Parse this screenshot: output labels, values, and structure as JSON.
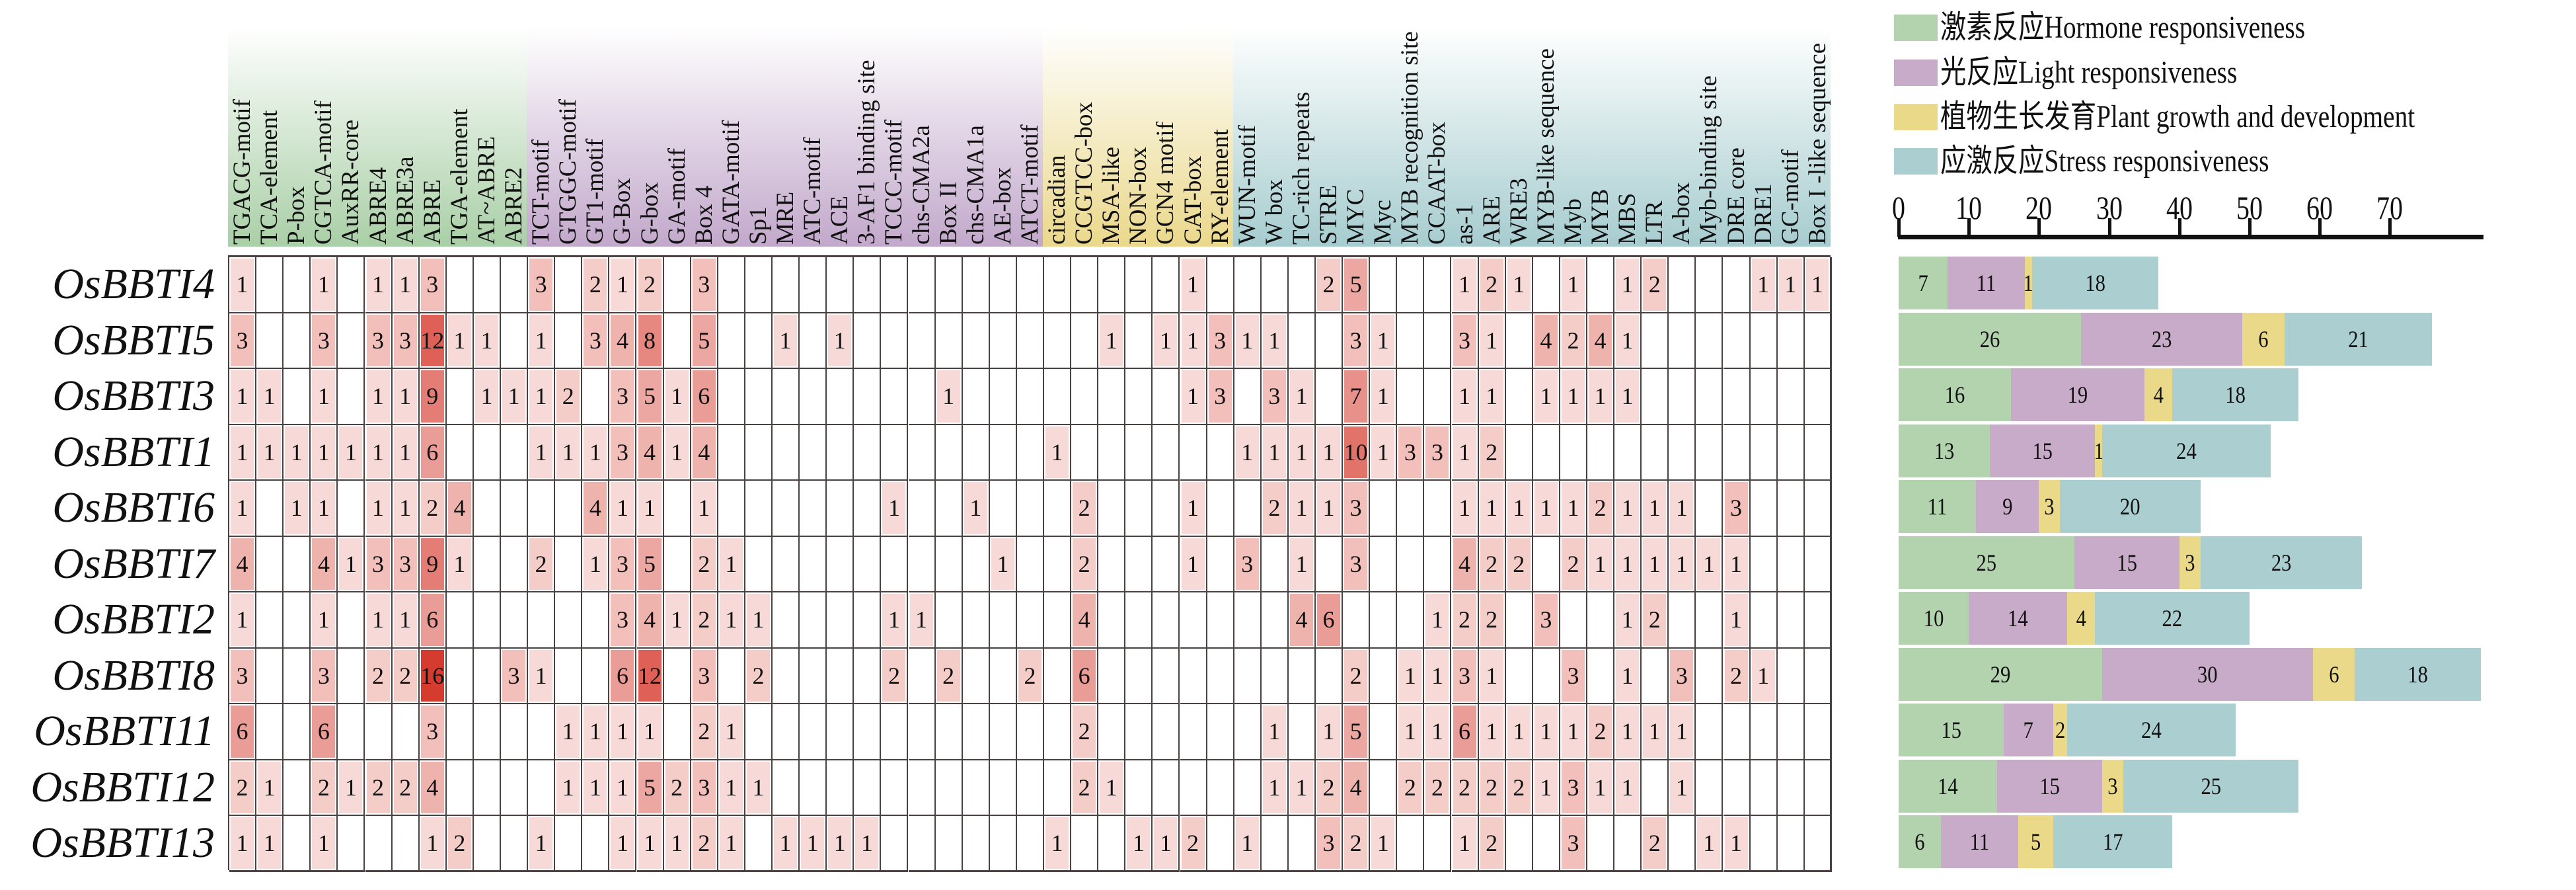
{
  "chart_data": [
    {
      "type": "heatmap",
      "title": "",
      "rows": [
        "OsBBTI4",
        "OsBBTI5",
        "OsBBTI3",
        "OsBBTI1",
        "OsBBTI6",
        "OsBBTI7",
        "OsBBTI2",
        "OsBBTI8",
        "OsBBTI11",
        "OsBBTI12",
        "OsBBTI13"
      ],
      "column_groups": [
        {
          "name": "Hormone responsiveness",
          "color": "#a9cfa6",
          "columns": [
            "TGACG-motif",
            "TCA-element",
            "P-box",
            "CGTCA-motif",
            "AuxRR-core",
            "ABRE4",
            "ABRE3a",
            "ABRE",
            "TGA-element",
            "AT~ABRE",
            "ABRE2"
          ]
        },
        {
          "name": "Light responsiveness",
          "color": "#c2a8cb",
          "columns": [
            "TCT-motif",
            "GTGGC-motif",
            "GT1-motif",
            "G-Box",
            "G-box",
            "GA-motif",
            "Box 4",
            "GATA-motif",
            "Sp1",
            "MRE",
            "ATC-motif",
            "ACE",
            "3-AF1 binding site",
            "TCCC-motif",
            "chs-CMA2a",
            "Box II",
            "chs-CMA1a",
            "AE-box",
            "ATCT-motif"
          ]
        },
        {
          "name": "Plant growth and development",
          "color": "#ead88b",
          "columns": [
            "circadian",
            "CCGTCC-box",
            "MSA-like",
            "NON-box",
            "GCN4 motif",
            "CAT-box",
            "RY-element"
          ]
        },
        {
          "name": "Stress responsiveness",
          "color": "#a6cccf",
          "columns": [
            "WUN-motif",
            "W box",
            "TC-rich repeats",
            "STRE",
            "MYC",
            "Myc",
            "MYB recognition site",
            "CCAAT-box",
            "as-1",
            "ARE",
            "WRE3",
            "MYB-like sequence",
            "Myb",
            "MYB",
            "MBS",
            "LTR",
            "A-box",
            "Myb-binding site",
            "DRE core",
            "DRE1",
            "GC-motif",
            "Box I -like sequence"
          ]
        }
      ],
      "values": [
        [
          1,
          0,
          0,
          1,
          0,
          1,
          1,
          3,
          0,
          0,
          0,
          3,
          0,
          2,
          1,
          2,
          0,
          3,
          0,
          0,
          0,
          0,
          0,
          0,
          0,
          0,
          0,
          0,
          0,
          0,
          0,
          0,
          0,
          0,
          0,
          1,
          0,
          0,
          0,
          0,
          2,
          5,
          0,
          0,
          0,
          1,
          2,
          1,
          0,
          1,
          0,
          1,
          2,
          0,
          0,
          0,
          1,
          1,
          1
        ],
        [
          3,
          0,
          0,
          3,
          0,
          3,
          3,
          12,
          1,
          1,
          0,
          1,
          0,
          3,
          4,
          8,
          0,
          5,
          0,
          0,
          1,
          0,
          1,
          0,
          0,
          0,
          0,
          0,
          0,
          0,
          0,
          0,
          1,
          0,
          1,
          1,
          3,
          1,
          1,
          0,
          0,
          3,
          1,
          0,
          0,
          3,
          1,
          0,
          4,
          2,
          4,
          1,
          0,
          0,
          0,
          0,
          0,
          0,
          0
        ],
        [
          1,
          1,
          0,
          1,
          0,
          1,
          1,
          9,
          0,
          1,
          1,
          1,
          2,
          0,
          3,
          5,
          1,
          6,
          0,
          0,
          0,
          0,
          0,
          0,
          0,
          0,
          1,
          0,
          0,
          0,
          0,
          0,
          0,
          0,
          0,
          1,
          3,
          0,
          3,
          1,
          0,
          7,
          1,
          0,
          0,
          1,
          1,
          0,
          1,
          1,
          1,
          1,
          0,
          0,
          0,
          0,
          0,
          0,
          0
        ],
        [
          1,
          1,
          1,
          1,
          1,
          1,
          1,
          6,
          0,
          0,
          0,
          1,
          1,
          1,
          3,
          4,
          1,
          4,
          0,
          0,
          0,
          0,
          0,
          0,
          0,
          0,
          0,
          0,
          0,
          0,
          1,
          0,
          0,
          0,
          0,
          0,
          0,
          1,
          1,
          1,
          1,
          10,
          1,
          3,
          3,
          1,
          2,
          0,
          0,
          0,
          0,
          0,
          0,
          0,
          0,
          0,
          0,
          0,
          0
        ],
        [
          1,
          0,
          1,
          1,
          0,
          1,
          1,
          2,
          4,
          0,
          0,
          0,
          0,
          4,
          1,
          1,
          0,
          1,
          0,
          0,
          0,
          0,
          0,
          0,
          1,
          0,
          0,
          1,
          0,
          0,
          0,
          2,
          0,
          0,
          0,
          1,
          0,
          0,
          2,
          1,
          1,
          3,
          0,
          0,
          0,
          1,
          1,
          1,
          1,
          1,
          2,
          1,
          1,
          1,
          0,
          3,
          0,
          0,
          0
        ],
        [
          4,
          0,
          0,
          4,
          1,
          3,
          3,
          9,
          1,
          0,
          0,
          2,
          0,
          1,
          3,
          5,
          0,
          2,
          1,
          0,
          0,
          0,
          0,
          0,
          0,
          0,
          0,
          0,
          1,
          0,
          0,
          2,
          0,
          0,
          0,
          1,
          0,
          3,
          0,
          1,
          0,
          3,
          0,
          0,
          0,
          4,
          2,
          2,
          0,
          2,
          1,
          1,
          1,
          1,
          1,
          1,
          0,
          0,
          0
        ],
        [
          1,
          0,
          0,
          1,
          0,
          1,
          1,
          6,
          0,
          0,
          0,
          0,
          0,
          0,
          3,
          4,
          1,
          2,
          1,
          1,
          0,
          0,
          0,
          0,
          1,
          1,
          0,
          0,
          0,
          0,
          0,
          4,
          0,
          0,
          0,
          0,
          0,
          0,
          0,
          4,
          6,
          0,
          0,
          0,
          1,
          2,
          2,
          0,
          3,
          0,
          0,
          1,
          2,
          0,
          0,
          1,
          0,
          0,
          0
        ],
        [
          3,
          0,
          0,
          3,
          0,
          2,
          2,
          16,
          0,
          0,
          3,
          1,
          0,
          0,
          6,
          12,
          0,
          3,
          0,
          2,
          0,
          0,
          0,
          0,
          2,
          0,
          2,
          0,
          0,
          2,
          0,
          6,
          0,
          0,
          0,
          0,
          0,
          0,
          0,
          0,
          0,
          2,
          0,
          1,
          1,
          3,
          1,
          0,
          0,
          3,
          0,
          1,
          0,
          3,
          0,
          2,
          1,
          0,
          0
        ],
        [
          6,
          0,
          0,
          6,
          0,
          0,
          0,
          3,
          0,
          0,
          0,
          0,
          1,
          1,
          1,
          1,
          0,
          2,
          1,
          0,
          0,
          0,
          0,
          0,
          0,
          0,
          0,
          0,
          0,
          0,
          0,
          2,
          0,
          0,
          0,
          0,
          0,
          0,
          1,
          0,
          1,
          5,
          0,
          1,
          1,
          6,
          1,
          1,
          1,
          1,
          2,
          1,
          1,
          1,
          0,
          0,
          0,
          0,
          0
        ],
        [
          2,
          1,
          0,
          2,
          1,
          2,
          2,
          4,
          0,
          0,
          0,
          0,
          1,
          1,
          1,
          5,
          2,
          3,
          1,
          1,
          0,
          0,
          0,
          0,
          0,
          0,
          0,
          0,
          0,
          0,
          0,
          2,
          1,
          0,
          0,
          0,
          0,
          0,
          1,
          1,
          2,
          4,
          0,
          2,
          2,
          2,
          2,
          2,
          1,
          3,
          1,
          1,
          0,
          1,
          0,
          0,
          0,
          0,
          0
        ],
        [
          1,
          1,
          0,
          1,
          0,
          0,
          0,
          1,
          2,
          0,
          0,
          1,
          0,
          0,
          1,
          1,
          1,
          2,
          1,
          0,
          1,
          1,
          1,
          1,
          0,
          0,
          0,
          0,
          0,
          0,
          1,
          0,
          0,
          1,
          1,
          2,
          0,
          1,
          0,
          0,
          3,
          2,
          1,
          0,
          0,
          1,
          2,
          0,
          0,
          3,
          0,
          0,
          2,
          0,
          1,
          1,
          0,
          0,
          0
        ]
      ],
      "color_scale": {
        "min": 0,
        "max": 16,
        "low": "#ffffff",
        "high": "#d63b2f"
      }
    },
    {
      "type": "bar",
      "orientation": "horizontal",
      "stacked": true,
      "categories": [
        "OsBBTI4",
        "OsBBTI5",
        "OsBBTI3",
        "OsBBTI1",
        "OsBBTI6",
        "OsBBTI7",
        "OsBBTI2",
        "OsBBTI8",
        "OsBBTI11",
        "OsBBTI12",
        "OsBBTI13"
      ],
      "series": [
        {
          "name": "激素反应Hormone responsiveness",
          "color": "#b3d3ae",
          "values": [
            7,
            26,
            16,
            13,
            11,
            25,
            10,
            29,
            15,
            14,
            6
          ]
        },
        {
          "name": "光反应Light responsiveness",
          "color": "#c8abc8",
          "values": [
            11,
            23,
            19,
            15,
            9,
            15,
            14,
            30,
            7,
            15,
            11
          ]
        },
        {
          "name": "植物生长发育Plant growth and development",
          "color": "#ebd98a",
          "values": [
            1,
            6,
            4,
            1,
            3,
            3,
            4,
            6,
            2,
            3,
            5
          ]
        },
        {
          "name": "应激反应Stress responsiveness",
          "color": "#abcfd0",
          "values": [
            18,
            21,
            18,
            24,
            20,
            23,
            22,
            18,
            24,
            25,
            17
          ]
        }
      ],
      "xlim": [
        0,
        83
      ],
      "xticks": [
        "0",
        "10",
        "20",
        "30",
        "40",
        "50",
        "60",
        "70"
      ],
      "legend_position": "top"
    }
  ]
}
